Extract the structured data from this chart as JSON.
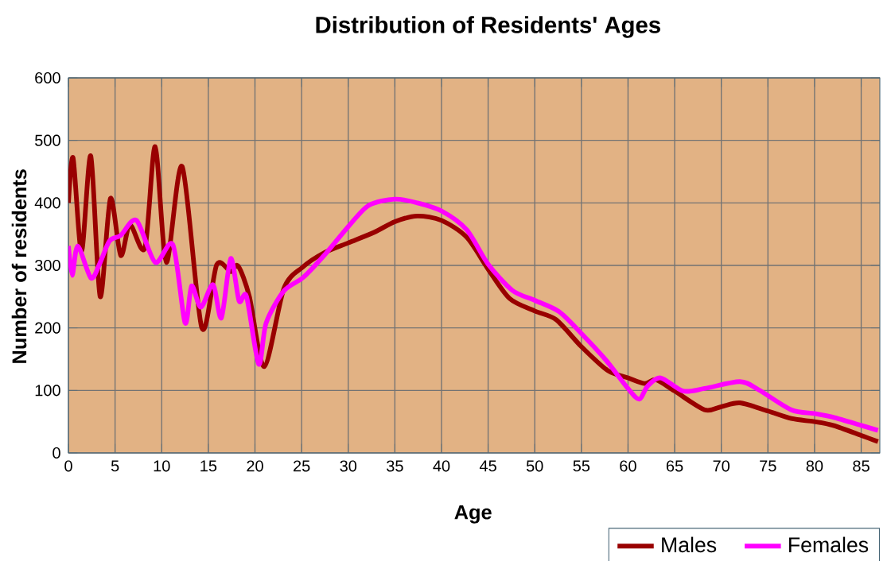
{
  "chart_data": {
    "type": "line",
    "title": "Distribution of Residents' Ages",
    "xlabel": "Age",
    "ylabel": "Number of residents",
    "xlim": [
      0,
      87
    ],
    "xticks": [
      0,
      5,
      10,
      15,
      20,
      25,
      30,
      35,
      40,
      45,
      50,
      55,
      60,
      65,
      70,
      75,
      80,
      85
    ],
    "ylim": [
      0,
      600
    ],
    "yticks": [
      0,
      100,
      200,
      300,
      400,
      500,
      600
    ],
    "grid": true,
    "legend": "bottom right",
    "marker": "none",
    "line_style": "solid",
    "series": [
      {
        "name": "Males",
        "color": "#990000",
        "x": [
          0,
          0.5,
          1.4,
          2.4,
          3.4,
          4.5,
          5.6,
          6.6,
          8.2,
          9.3,
          10.5,
          12.2,
          14.3,
          15.9,
          17.4,
          18.2,
          19.4,
          21,
          23.1,
          25.1,
          27.4,
          30,
          32.8,
          35,
          37.4,
          40,
          42.7,
          45,
          47.3,
          50,
          52.3,
          55,
          57.8,
          60,
          61.8,
          63,
          65,
          68.2,
          70,
          72,
          75,
          77.5,
          80,
          82,
          85,
          86.8
        ],
        "values": [
          400,
          472,
          322,
          475,
          250,
          407,
          316,
          365,
          328,
          490,
          305,
          458,
          200,
          301,
          290,
          299,
          250,
          138,
          263,
          297,
          320,
          336,
          353,
          370,
          379,
          372,
          345,
          294,
          247,
          227,
          213,
          170,
          132,
          120,
          111,
          117,
          99,
          69,
          74,
          80,
          67,
          55,
          50,
          44,
          28,
          18
        ]
      },
      {
        "name": "Females",
        "color": "#ff00ff",
        "x": [
          0,
          0.4,
          1,
          2.4,
          3.3,
          4.4,
          5.6,
          7.3,
          9.3,
          11.2,
          12.5,
          13.2,
          14.2,
          15.5,
          16.4,
          17.4,
          18.3,
          19.1,
          20.4,
          21.2,
          23.1,
          25.2,
          27.6,
          30,
          32.2,
          35,
          37.4,
          40,
          42.7,
          45,
          47.6,
          50,
          52.6,
          55,
          57.6,
          60,
          61.2,
          62.1,
          63.5,
          65.9,
          68.2,
          72,
          74,
          77.5,
          80,
          82,
          85,
          86.8
        ],
        "values": [
          331,
          284,
          331,
          280,
          301,
          339,
          348,
          372,
          305,
          333,
          208,
          267,
          233,
          269,
          216,
          311,
          243,
          250,
          142,
          208,
          259,
          281,
          319,
          362,
          396,
          406,
          400,
          387,
          357,
          302,
          260,
          244,
          226,
          191,
          149,
          103,
          86,
          107,
          120,
          99,
          103,
          114,
          101,
          69,
          63,
          57,
          44,
          36
        ]
      }
    ]
  }
}
